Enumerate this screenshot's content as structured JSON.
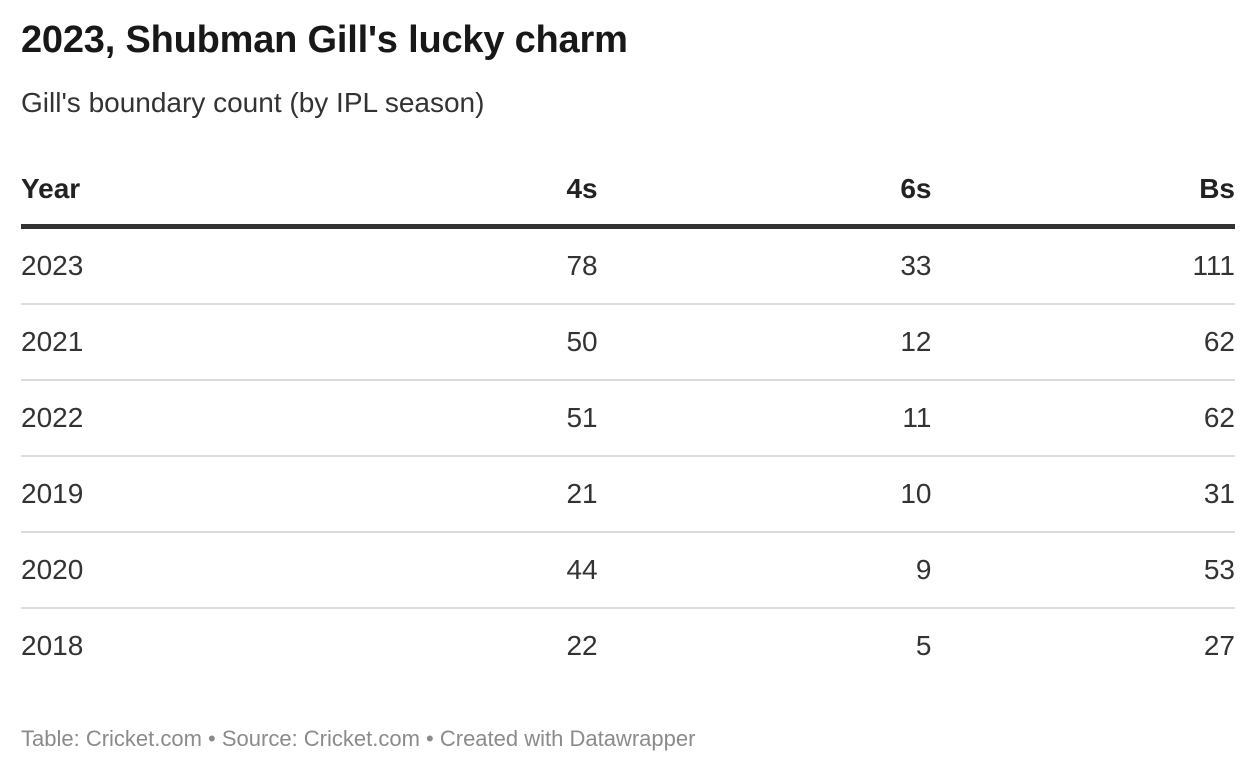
{
  "header": {
    "title": "2023, Shubman Gill's lucky charm",
    "subtitle": "Gill's boundary count (by IPL season)"
  },
  "chart_data": {
    "type": "table",
    "columns": [
      "Year",
      "4s",
      "6s",
      "Bs"
    ],
    "rows": [
      [
        "2023",
        78,
        33,
        111
      ],
      [
        "2021",
        50,
        12,
        62
      ],
      [
        "2022",
        51,
        11,
        62
      ],
      [
        "2019",
        21,
        10,
        31
      ],
      [
        "2020",
        44,
        9,
        53
      ],
      [
        "2018",
        22,
        5,
        27
      ]
    ],
    "sort": "6s descending",
    "alignment": {
      "Year": "left",
      "4s": "right",
      "6s": "right",
      "Bs": "right"
    },
    "colors": {
      "title_text": "#181818",
      "body_text": "#333333",
      "header_rule": "#333333",
      "row_rule": "#dddddd",
      "footer_text": "#8b8b8b"
    }
  },
  "footer": {
    "text": "Table: Cricket.com • Source: Cricket.com • Created with Datawrapper"
  }
}
